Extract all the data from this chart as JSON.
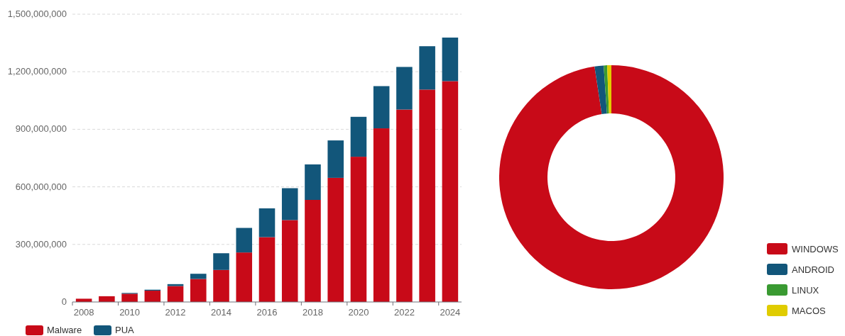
{
  "chart_data": [
    {
      "type": "bar",
      "stacked": true,
      "categories": [
        "2008",
        null,
        "2010",
        null,
        "2012",
        null,
        "2014",
        null,
        "2016",
        null,
        "2018",
        null,
        "2020",
        null,
        "2022",
        null,
        "2024"
      ],
      "series": [
        {
          "name": "Malware",
          "color": "#c80a18",
          "values": [
            17000000,
            30000000,
            43000000,
            59000000,
            83000000,
            120000000,
            167000000,
            258000000,
            338000000,
            427000000,
            532000000,
            647000000,
            757000000,
            905000000,
            1003000000,
            1107000000,
            1151000000
          ]
        },
        {
          "name": "PUA",
          "color": "#12567a",
          "values": [
            0,
            0,
            4000000,
            5000000,
            10000000,
            27000000,
            87000000,
            128000000,
            150000000,
            166000000,
            185000000,
            195000000,
            208000000,
            220000000,
            222000000,
            226000000,
            227000000
          ]
        }
      ],
      "ylim": [
        0,
        1500000000
      ],
      "yticks": [
        {
          "value": 0,
          "label": "0"
        },
        {
          "value": 300000000,
          "label": "300,000,000"
        },
        {
          "value": 600000000,
          "label": "600,000,000"
        },
        {
          "value": 900000000,
          "label": "900,000,000"
        },
        {
          "value": 1200000000,
          "label": "1,200,000,000"
        },
        {
          "value": 1500000000,
          "label": "1,500,000,000"
        }
      ],
      "grid": "y",
      "legend": "bottom left"
    },
    {
      "type": "donut",
      "categories": [
        "WINDOWS",
        "ANDROID",
        "LINUX",
        "MACOS"
      ],
      "values": [
        97.6,
        1.3,
        0.5,
        0.6
      ],
      "colors": [
        "#c80a18",
        "#12567a",
        "#3a9a32",
        "#e0cc00"
      ],
      "legend": "bottom right"
    }
  ]
}
